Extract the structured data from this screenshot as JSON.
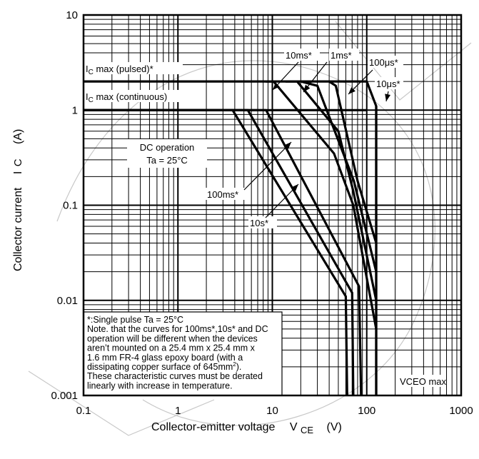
{
  "chart_data": {
    "type": "line",
    "title": "",
    "xlabel": "Collector-emitter voltage",
    "xlabel_symbol": "V",
    "xlabel_sub": "CE",
    "xlabel_unit": "(V)",
    "ylabel": "Collector current",
    "ylabel_symbol": "I",
    "ylabel_sub": "C",
    "ylabel_unit": "(A)",
    "xscale": "log",
    "yscale": "log",
    "xlim": [
      0.1,
      1000
    ],
    "ylim": [
      0.001,
      10
    ],
    "grid": true,
    "x_ticks": [
      {
        "value": 0.1,
        "label": "0.1"
      },
      {
        "value": 1,
        "label": "1"
      },
      {
        "value": 10,
        "label": "10"
      },
      {
        "value": 100,
        "label": "100"
      },
      {
        "value": 1000,
        "label": "1000"
      }
    ],
    "y_ticks": [
      {
        "value": 0.001,
        "label": "0.001"
      },
      {
        "value": 0.01,
        "label": "0.01"
      },
      {
        "value": 0.1,
        "label": "0.1"
      },
      {
        "value": 1,
        "label": "1"
      },
      {
        "value": 10,
        "label": "10"
      }
    ],
    "series": [
      {
        "name": "DC operation",
        "x": [
          0.1,
          1.0,
          3.8,
          60,
          62
        ],
        "y": [
          1,
          1,
          1,
          0.011,
          0.001
        ]
      },
      {
        "name": "10s*",
        "x": [
          0.1,
          1.0,
          5.5,
          70,
          72
        ],
        "y": [
          1,
          1,
          1,
          0.012,
          0.001
        ]
      },
      {
        "name": "100ms*",
        "x": [
          0.1,
          1.0,
          8.6,
          83,
          87
        ],
        "y": [
          1,
          1,
          1,
          0.014,
          0.001
        ]
      },
      {
        "name": "10ms*",
        "x": [
          8.5,
          10.3,
          45,
          72,
          126
        ],
        "y": [
          2,
          2,
          0.35,
          0.1,
          0.005
        ]
      },
      {
        "name": "1ms*",
        "x": [
          13.8,
          18.3,
          50,
          72,
          126
        ],
        "y": [
          2,
          2,
          0.6,
          0.14,
          0.01
        ]
      },
      {
        "name": "100μs*",
        "x": [
          20,
          30,
          73,
          126
        ],
        "y": [
          2,
          1.8,
          0.18,
          0.02
        ]
      },
      {
        "name": "10μs*",
        "x": [
          40,
          47,
          80,
          126
        ],
        "y": [
          2,
          1.8,
          0.18,
          0.04
        ]
      },
      {
        "name": "IC max (pulsed)*",
        "x": [
          0.1,
          100,
          126,
          126
        ],
        "y": [
          2,
          2,
          1.1,
          0.001
        ]
      },
      {
        "name": "IC max (continuous)",
        "x": [
          0.1,
          100
        ],
        "y": [
          1,
          1
        ]
      },
      {
        "name": "VCEO max",
        "x": [
          126,
          126
        ],
        "y": [
          1.1,
          0.001
        ]
      }
    ],
    "annotations": {
      "ic_pulsed": {
        "prefix": "I",
        "sub": "C",
        "rest": " max (pulsed)*"
      },
      "ic_continuous": {
        "prefix": "I",
        "sub": "C",
        "rest": " max (continuous)"
      },
      "dc_line1": "DC operation",
      "dc_line2": "Ta = 25°C",
      "ms100": "100ms*",
      "s10": "10s*",
      "ms10": "10ms*",
      "ms1": "1ms*",
      "us100": "100μs*",
      "us10": "10μs*",
      "vceo": "VCEO max"
    },
    "note": {
      "line1": "*:Single pulse    Ta = 25°C",
      "line2": "Note. that the curves for 100ms*,10s* and DC",
      "line3": "operation will be different when the devices",
      "line4": "aren’t mounted on a 25.4 mm x 25.4 mm x",
      "line5": "1.6 mm FR-4 glass epoxy board (with a",
      "line6_pre": "dissipating copper surface of 645mm",
      "line6_sup": "2",
      "line6_post": ").",
      "line7": "These characteristic curves must be derated",
      "line8": "linearly with increase in temperature."
    }
  }
}
